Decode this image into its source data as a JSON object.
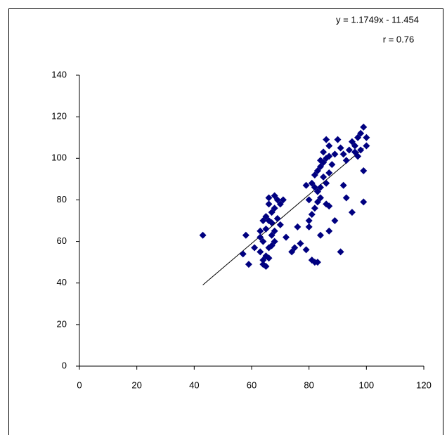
{
  "chart_data": {
    "type": "scatter",
    "annotations": [
      "y = 1.1749x - 11.454",
      "r = 0.76"
    ],
    "trendline": {
      "slope": 1.1749,
      "intercept": -11.454,
      "x_range": [
        43,
        99
      ]
    },
    "color": "#000080",
    "x": [
      43,
      57,
      58,
      59,
      61,
      64,
      64,
      65,
      63,
      66,
      64,
      63,
      65,
      66,
      65,
      67,
      66,
      66,
      68,
      67,
      68,
      67,
      69,
      68,
      70,
      71,
      69,
      72,
      68,
      66,
      65,
      70,
      67,
      64,
      63,
      74,
      75,
      76,
      77,
      79,
      80,
      80,
      81,
      82,
      83,
      84,
      81,
      82,
      80,
      83,
      84,
      81,
      79,
      82,
      83,
      84,
      85,
      86,
      87,
      86,
      85,
      84,
      87,
      86,
      87,
      89,
      91,
      92,
      93,
      95,
      99,
      99,
      90,
      91,
      92,
      93,
      94,
      95,
      96,
      97,
      98,
      99,
      100,
      100,
      98,
      97,
      96,
      89,
      88,
      87,
      85,
      86,
      84,
      83,
      82,
      87
    ],
    "y": [
      63,
      54,
      63,
      49,
      57,
      49,
      51,
      53,
      55,
      57,
      60,
      65,
      66,
      70,
      72,
      74,
      78,
      81,
      82,
      63,
      65,
      69,
      71,
      76,
      78,
      80,
      80,
      62,
      60,
      52,
      48,
      68,
      58,
      70,
      62,
      55,
      57,
      67,
      59,
      56,
      67,
      70,
      51,
      50,
      50,
      63,
      73,
      76,
      80,
      84,
      86,
      88,
      87,
      92,
      94,
      96,
      98,
      100,
      106,
      109,
      103,
      99,
      93,
      78,
      77,
      70,
      55,
      87,
      81,
      74,
      79,
      94,
      109,
      105,
      102,
      99,
      104,
      108,
      106,
      110,
      112,
      115,
      110,
      106,
      104,
      101,
      103,
      102,
      97,
      101,
      91,
      88,
      81,
      79,
      86,
      65
    ],
    "xlim": [
      0,
      120
    ],
    "xticks": [
      0,
      20,
      40,
      60,
      80,
      100,
      120
    ],
    "ylim": [
      0,
      140
    ],
    "yticks": [
      0,
      20,
      40,
      60,
      80,
      100,
      120,
      140
    ]
  }
}
